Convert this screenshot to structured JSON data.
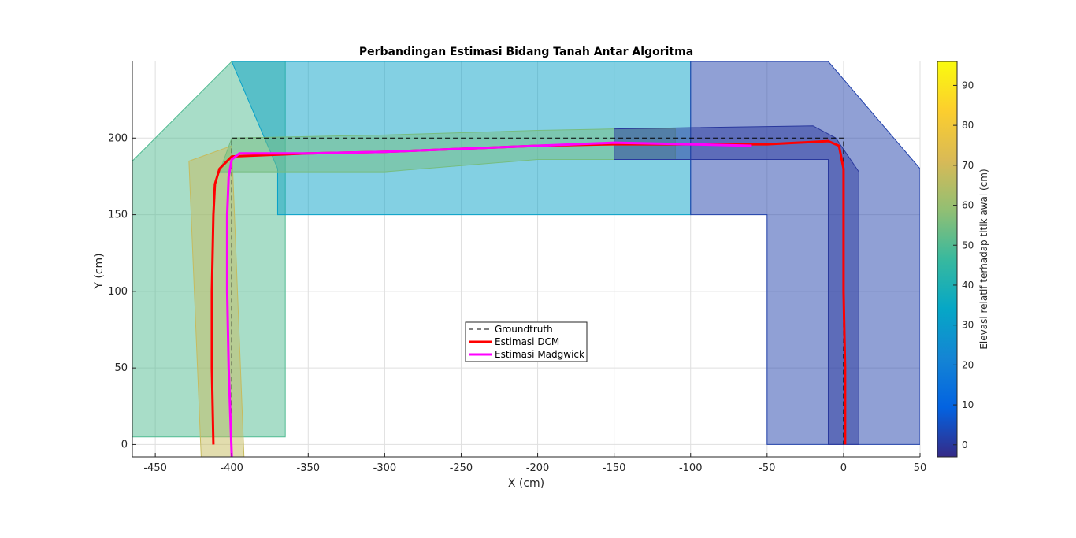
{
  "chart_data": {
    "type": "line",
    "title": "Perbandingan Estimasi Bidang Tanah Antar Algoritma",
    "xlabel": "X (cm)",
    "ylabel": "Y (cm)",
    "xlim": [
      -465,
      50
    ],
    "ylim": [
      -8,
      250
    ],
    "x_ticks": [
      -450,
      -400,
      -350,
      -300,
      -250,
      -200,
      -150,
      -100,
      -50,
      0,
      50
    ],
    "x_tick_labels": [
      "-450",
      "-400",
      "-350",
      "-300",
      "-250",
      "-200",
      "-150",
      "-100",
      "-50",
      "0",
      "50"
    ],
    "y_ticks": [
      0,
      50,
      100,
      150,
      200
    ],
    "y_tick_labels": [
      "0",
      "50",
      "100",
      "150",
      "200"
    ],
    "grid": true,
    "legend_position": "center",
    "colorbar": {
      "label": "Elevasi relatif terhadap titik awal (cm)",
      "range": [
        -3,
        96
      ],
      "ticks": [
        0,
        10,
        20,
        30,
        40,
        50,
        60,
        70,
        80,
        90
      ],
      "tick_labels": [
        "0",
        "10",
        "20",
        "30",
        "40",
        "50",
        "60",
        "70",
        "80",
        "90"
      ],
      "colormap": "parula"
    },
    "series": [
      {
        "name": "Groundtruth",
        "color": "#000000",
        "style": "dashed",
        "x": [
          -400,
          -400,
          0,
          0
        ],
        "y": [
          0,
          200,
          200,
          0
        ]
      },
      {
        "name": "Estimasi DCM",
        "color": "#ff0000",
        "style": "solid",
        "x": [
          -412,
          -413,
          -413,
          -412,
          -411,
          -408,
          -400,
          -350,
          -300,
          -250,
          -200,
          -150,
          -100,
          -50,
          -10,
          -3,
          0,
          0,
          0,
          1,
          1
        ],
        "y": [
          0,
          50,
          100,
          150,
          170,
          180,
          188,
          190,
          191,
          193,
          195,
          196,
          196,
          196,
          198,
          195,
          180,
          150,
          100,
          50,
          0
        ]
      },
      {
        "name": "Estimasi Madgwick",
        "color": "#ff00ff",
        "style": "solid",
        "x": [
          -400,
          -402,
          -403,
          -403,
          -402,
          -400,
          -395,
          -350,
          -300,
          -250,
          -200,
          -150,
          -100,
          -60
        ],
        "y": [
          -8,
          50,
          100,
          150,
          175,
          186,
          190,
          190,
          191,
          193,
          195,
          197,
          196,
          195
        ]
      }
    ],
    "surface_patches": [
      {
        "x": [
          -465,
          -400,
          -365,
          -365,
          -465
        ],
        "y": [
          185,
          250,
          250,
          5,
          5
        ],
        "value": 50
      },
      {
        "x": [
          -400,
          -100,
          -100,
          -370,
          -370
        ],
        "y": [
          250,
          250,
          150,
          150,
          180
        ],
        "value": 32
      },
      {
        "x": [
          -100,
          -10,
          50,
          50,
          -50,
          -50,
          -100
        ],
        "y": [
          250,
          250,
          180,
          0,
          0,
          150,
          150
        ],
        "value": 2
      },
      {
        "x": [
          -428,
          -400,
          -392,
          -420
        ],
        "y": [
          185,
          195,
          -8,
          -8
        ],
        "value": 68
      },
      {
        "x": [
          -408,
          -400,
          -300,
          -200,
          -150,
          -110,
          -110,
          -200,
          -300,
          -408
        ],
        "y": [
          178,
          200,
          202,
          205,
          206,
          206,
          186,
          186,
          178,
          178
        ],
        "value": 55
      },
      {
        "x": [
          -150,
          -20,
          -5,
          10,
          10,
          -10,
          -10,
          -150
        ],
        "y": [
          206,
          208,
          200,
          178,
          0,
          0,
          186,
          186
        ],
        "value": 0
      }
    ]
  }
}
